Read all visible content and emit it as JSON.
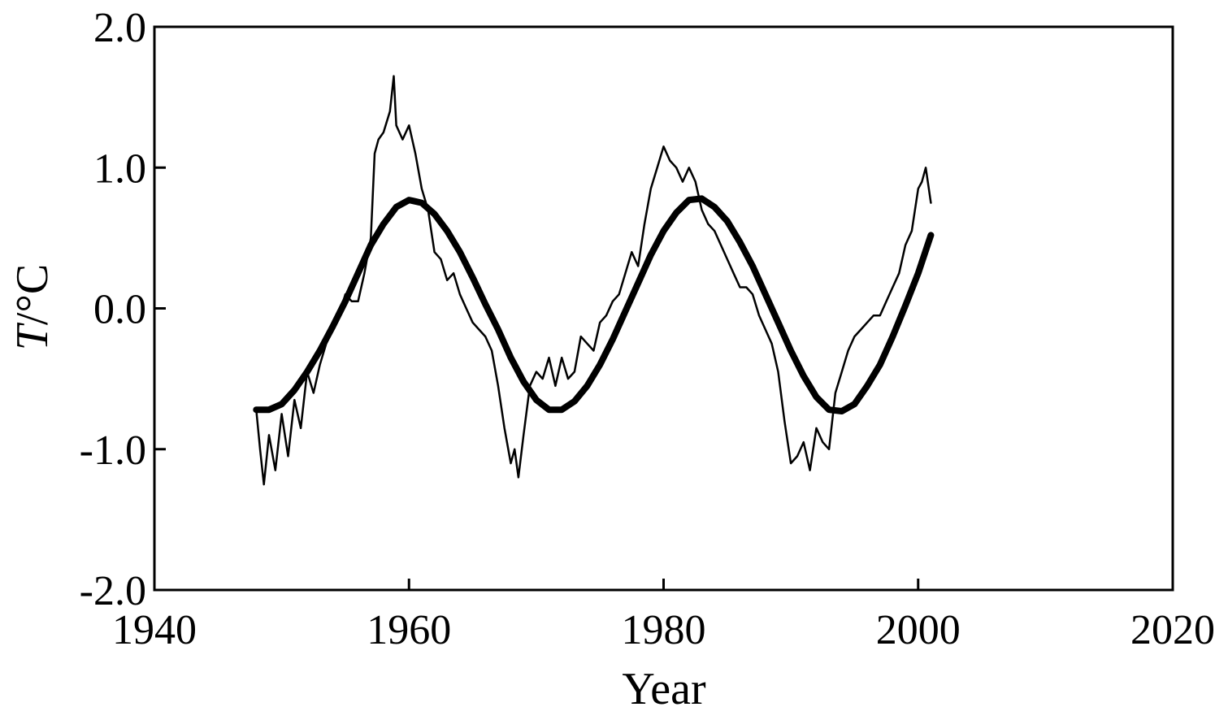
{
  "chart_data": {
    "type": "line",
    "xlabel": "Year",
    "ylabel_symbol": "T",
    "ylabel_unit": "/°C",
    "xlim": [
      1940,
      2020
    ],
    "ylim": [
      -2.0,
      2.0
    ],
    "x_ticks": [
      1940,
      1960,
      1980,
      2000,
      2020
    ],
    "y_ticks": [
      -2.0,
      -1.0,
      0.0,
      1.0,
      2.0
    ],
    "x_tick_labels": [
      "1940",
      "1960",
      "1980",
      "2000",
      "2020"
    ],
    "y_tick_labels": [
      "-2.0",
      "-1.0",
      "0.0",
      "1.0",
      "2.0"
    ],
    "grid": false,
    "line_color": "#000000",
    "series": [
      {
        "style": "thin-noisy",
        "x": [
          1948.0,
          1948.3,
          1948.6,
          1949.0,
          1949.5,
          1950.0,
          1950.5,
          1951.0,
          1951.5,
          1952.0,
          1952.5,
          1953.0,
          1953.5,
          1954.0,
          1954.5,
          1955.0,
          1955.5,
          1956.0,
          1956.5,
          1957.0,
          1957.3,
          1957.6,
          1958.0,
          1958.5,
          1958.8,
          1959.0,
          1959.5,
          1960.0,
          1960.5,
          1961.0,
          1961.5,
          1962.0,
          1962.5,
          1963.0,
          1963.5,
          1964.0,
          1964.5,
          1965.0,
          1965.5,
          1966.0,
          1966.5,
          1967.0,
          1967.5,
          1968.0,
          1968.3,
          1968.6,
          1969.0,
          1969.5,
          1970.0,
          1970.5,
          1971.0,
          1971.5,
          1972.0,
          1972.5,
          1973.0,
          1973.5,
          1974.0,
          1974.5,
          1975.0,
          1975.5,
          1976.0,
          1976.5,
          1977.0,
          1977.5,
          1978.0,
          1978.5,
          1979.0,
          1979.5,
          1980.0,
          1980.5,
          1981.0,
          1981.5,
          1982.0,
          1982.5,
          1983.0,
          1983.5,
          1984.0,
          1984.5,
          1985.0,
          1985.5,
          1986.0,
          1986.5,
          1987.0,
          1987.5,
          1988.0,
          1988.5,
          1989.0,
          1989.5,
          1990.0,
          1990.5,
          1991.0,
          1991.5,
          1992.0,
          1992.5,
          1993.0,
          1993.5,
          1994.0,
          1994.5,
          1995.0,
          1995.5,
          1996.0,
          1996.5,
          1997.0,
          1997.5,
          1998.0,
          1998.5,
          1999.0,
          1999.5,
          2000.0,
          2000.3,
          2000.6,
          2001.0
        ],
        "y": [
          -0.72,
          -1.0,
          -1.25,
          -0.9,
          -1.15,
          -0.75,
          -1.05,
          -0.65,
          -0.85,
          -0.45,
          -0.6,
          -0.4,
          -0.25,
          -0.15,
          -0.05,
          0.1,
          0.05,
          0.05,
          0.25,
          0.5,
          1.1,
          1.2,
          1.25,
          1.4,
          1.65,
          1.3,
          1.2,
          1.3,
          1.1,
          0.85,
          0.7,
          0.4,
          0.35,
          0.2,
          0.25,
          0.1,
          0.0,
          -0.1,
          -0.15,
          -0.2,
          -0.3,
          -0.55,
          -0.85,
          -1.1,
          -1.0,
          -1.2,
          -0.9,
          -0.55,
          -0.45,
          -0.5,
          -0.35,
          -0.55,
          -0.35,
          -0.5,
          -0.45,
          -0.2,
          -0.25,
          -0.3,
          -0.1,
          -0.05,
          0.05,
          0.1,
          0.25,
          0.4,
          0.3,
          0.6,
          0.85,
          1.0,
          1.15,
          1.05,
          1.0,
          0.9,
          1.0,
          0.9,
          0.7,
          0.6,
          0.55,
          0.45,
          0.35,
          0.25,
          0.15,
          0.15,
          0.1,
          -0.05,
          -0.15,
          -0.25,
          -0.45,
          -0.8,
          -1.1,
          -1.05,
          -0.95,
          -1.15,
          -0.85,
          -0.95,
          -1.0,
          -0.6,
          -0.45,
          -0.3,
          -0.2,
          -0.15,
          -0.1,
          -0.05,
          -0.05,
          0.05,
          0.15,
          0.25,
          0.45,
          0.55,
          0.85,
          0.9,
          1.0,
          0.75
        ]
      },
      {
        "style": "thick-fit",
        "x": [
          1948.0,
          1949.0,
          1950.0,
          1951.0,
          1952.0,
          1953.0,
          1954.0,
          1955.0,
          1956.0,
          1957.0,
          1958.0,
          1959.0,
          1960.0,
          1961.0,
          1962.0,
          1963.0,
          1964.0,
          1965.0,
          1966.0,
          1967.0,
          1968.0,
          1969.0,
          1970.0,
          1971.0,
          1972.0,
          1973.0,
          1974.0,
          1975.0,
          1976.0,
          1977.0,
          1978.0,
          1979.0,
          1980.0,
          1981.0,
          1982.0,
          1983.0,
          1984.0,
          1985.0,
          1986.0,
          1987.0,
          1988.0,
          1989.0,
          1990.0,
          1991.0,
          1992.0,
          1993.0,
          1994.0,
          1995.0,
          1996.0,
          1997.0,
          1998.0,
          1999.0,
          2000.0,
          2001.0
        ],
        "y": [
          -0.72,
          -0.72,
          -0.68,
          -0.58,
          -0.45,
          -0.3,
          -0.13,
          0.05,
          0.25,
          0.45,
          0.6,
          0.72,
          0.77,
          0.75,
          0.67,
          0.55,
          0.4,
          0.22,
          0.03,
          -0.15,
          -0.35,
          -0.52,
          -0.65,
          -0.72,
          -0.72,
          -0.66,
          -0.55,
          -0.4,
          -0.22,
          -0.02,
          0.18,
          0.38,
          0.55,
          0.68,
          0.77,
          0.78,
          0.72,
          0.62,
          0.47,
          0.3,
          0.1,
          -0.1,
          -0.3,
          -0.48,
          -0.63,
          -0.72,
          -0.73,
          -0.68,
          -0.55,
          -0.4,
          -0.2,
          0.02,
          0.25,
          0.52
        ]
      }
    ]
  }
}
